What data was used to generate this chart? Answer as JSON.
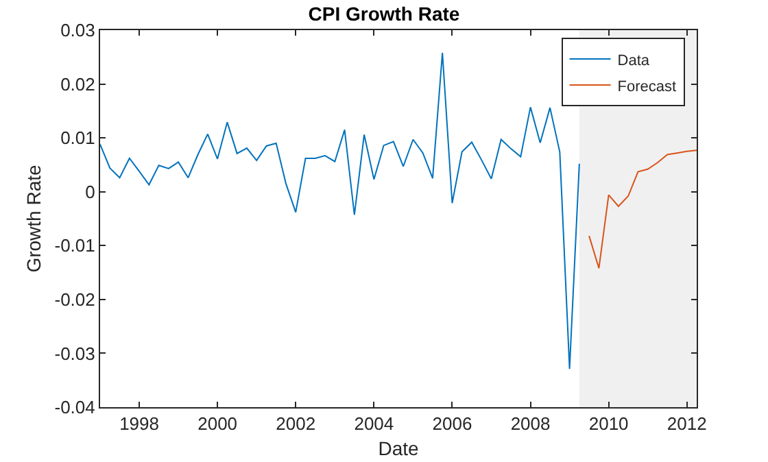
{
  "chart_data": {
    "type": "line",
    "title": "CPI Growth Rate",
    "xlabel": "Date",
    "ylabel": "Growth Rate",
    "xlim": [
      1997,
      2012.25
    ],
    "xticks": [
      1998,
      2000,
      2002,
      2004,
      2006,
      2008,
      2010,
      2012
    ],
    "ylim": [
      -0.04,
      0.03
    ],
    "yticks": [
      {
        "value": -0.04,
        "label": "-0.04"
      },
      {
        "value": -0.03,
        "label": "-0.03"
      },
      {
        "value": -0.02,
        "label": "-0.02"
      },
      {
        "value": -0.01,
        "label": "-0.01"
      },
      {
        "value": 0,
        "label": "0"
      },
      {
        "value": 0.01,
        "label": "0.01"
      },
      {
        "value": 0.02,
        "label": "0.02"
      },
      {
        "value": 0.03,
        "label": "0.03"
      }
    ],
    "grid": false,
    "legend": "top right",
    "marker": "none",
    "line_style": "solid",
    "bands": [
      {
        "axis": "x",
        "from": 2009.25,
        "to": 2012.25,
        "color": "#f0f0f0"
      }
    ],
    "series": [
      {
        "name": "Data",
        "color": "#0072bd",
        "x": [
          1997,
          1997.25,
          1997.5,
          1997.75,
          1998,
          1998.25,
          1998.5,
          1998.75,
          1999,
          1999.25,
          1999.5,
          1999.75,
          2000,
          2000.25,
          2000.5,
          2000.75,
          2001,
          2001.25,
          2001.5,
          2001.75,
          2002,
          2002.25,
          2002.5,
          2002.75,
          2003,
          2003.25,
          2003.5,
          2003.75,
          2004,
          2004.25,
          2004.5,
          2004.75,
          2005,
          2005.25,
          2005.5,
          2005.75,
          2006,
          2006.25,
          2006.5,
          2006.75,
          2007,
          2007.25,
          2007.5,
          2007.75,
          2008,
          2008.25,
          2008.5,
          2008.75,
          2009,
          2009.25
        ],
        "values": [
          0.0088,
          0.0044,
          0.0026,
          0.0062,
          0.0038,
          0.0013,
          0.0049,
          0.0043,
          0.0055,
          0.0026,
          0.0069,
          0.0107,
          0.0061,
          0.0129,
          0.0071,
          0.0081,
          0.0058,
          0.0085,
          0.009,
          0.0015,
          -0.0038,
          0.0062,
          0.0062,
          0.0067,
          0.0056,
          0.0115,
          -0.0043,
          0.0106,
          0.0023,
          0.0086,
          0.0093,
          0.0047,
          0.0097,
          0.0072,
          0.0025,
          0.0258,
          -0.0021,
          0.0074,
          0.0092,
          0.0059,
          0.0024,
          0.0097,
          0.008,
          0.0065,
          0.0157,
          0.0091,
          0.0156,
          0.0074,
          -0.0329,
          0.0052
        ]
      },
      {
        "name": "Forecast",
        "color": "#d95319",
        "x": [
          2009.5,
          2009.75,
          2010,
          2010.25,
          2010.5,
          2010.75,
          2011,
          2011.25,
          2011.5,
          2011.75,
          2012,
          2012.25
        ],
        "values": [
          -0.0082,
          -0.0142,
          -0.0006,
          -0.0027,
          -0.0008,
          0.0037,
          0.0042,
          0.0054,
          0.0069,
          0.0072,
          0.0075,
          0.0077
        ]
      }
    ]
  }
}
